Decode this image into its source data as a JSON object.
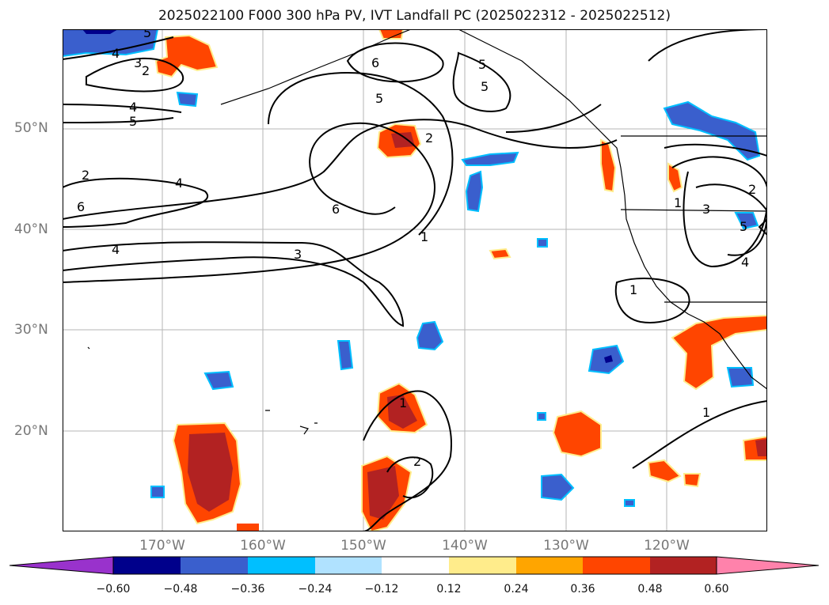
{
  "title": "2025022100 F000 300 hPa PV, IVT Landfall PC (2025022312 - 2025022512)",
  "lat_labels": [
    "50°N",
    "40°N",
    "30°N",
    "20°N"
  ],
  "lon_labels": [
    "170°W",
    "160°W",
    "150°W",
    "140°W",
    "130°W",
    "120°W"
  ],
  "colorbar": {
    "colors": [
      "#9932cc",
      "#00008b",
      "#3a5fcd",
      "#00bfff",
      "#b0e2ff",
      "#ffffff",
      "#ffec8b",
      "#ffa500",
      "#ff4500",
      "#b22222",
      "#ff82ab"
    ],
    "tick_labels": [
      "−0.60",
      "−0.48",
      "−0.36",
      "−0.24",
      "−0.12",
      "0.12",
      "0.24",
      "0.36",
      "0.48",
      "0.60"
    ]
  },
  "contour_labels": [
    "5",
    "4",
    "3",
    "2",
    "6",
    "5",
    "5",
    "4",
    "5",
    "2",
    "5",
    "4",
    "6",
    "4",
    "3",
    "6",
    "1",
    "2",
    "1",
    "3",
    "5",
    "4",
    "2",
    "1",
    "1",
    "1",
    "2"
  ]
}
